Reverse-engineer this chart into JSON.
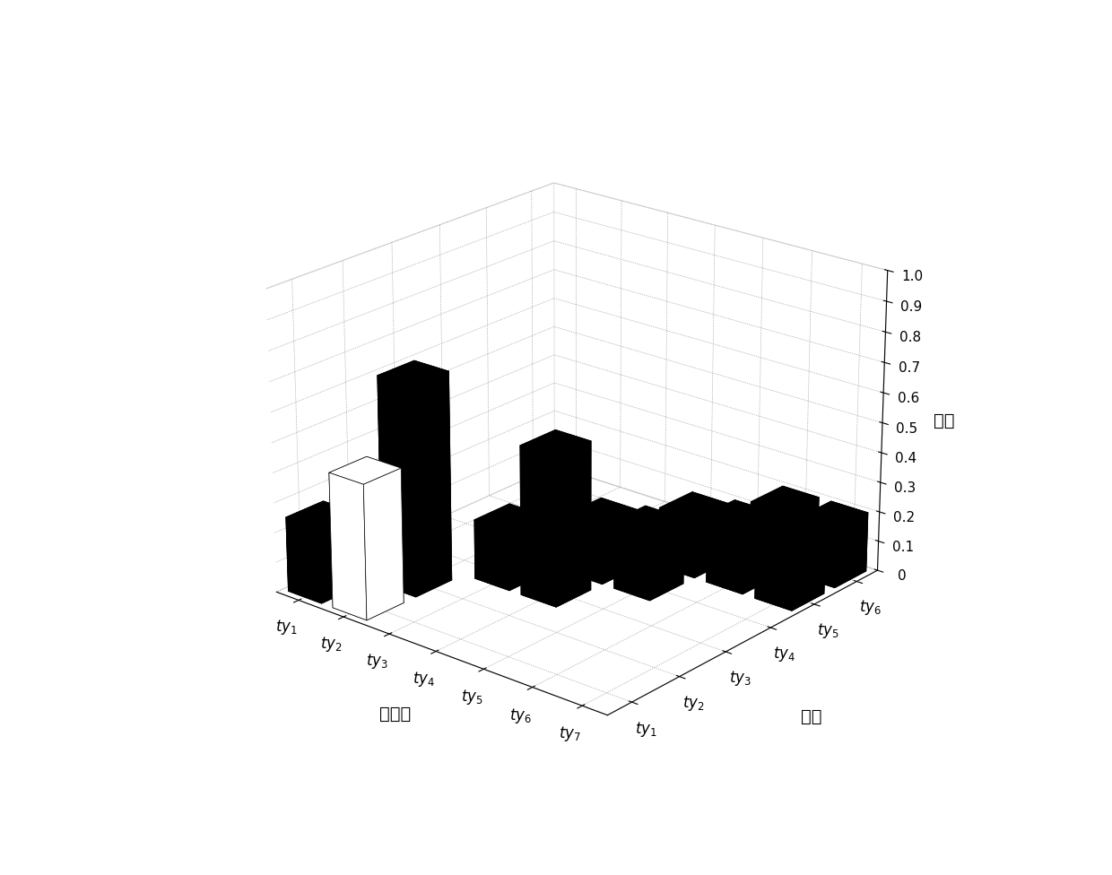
{
  "xlabel": "目的地",
  "ylabel": "初始",
  "zlabel": "概率",
  "x_labels": [
    "$ty_1$",
    "$ty_2$",
    "$ty_3$",
    "$ty_4$",
    "$ty_5$",
    "$ty_6$",
    "$ty_7$"
  ],
  "y_labels": [
    "$ty_1$",
    "$ty_2$",
    "$ty_3$",
    "$ty_4$",
    "$ty_5$",
    "$ty_6$"
  ],
  "z_data": [
    [
      0.25,
      0.45,
      0.0,
      0.0,
      0.0,
      0.0,
      0.0
    ],
    [
      0.1,
      0.7,
      0.0,
      0.0,
      0.0,
      0.0,
      0.0
    ],
    [
      0.0,
      0.0,
      0.2,
      0.5,
      0.0,
      0.0,
      0.0
    ],
    [
      0.0,
      0.0,
      0.2,
      0.2,
      0.2,
      0.0,
      0.0
    ],
    [
      0.0,
      0.0,
      0.0,
      0.1,
      0.2,
      0.2,
      0.2
    ],
    [
      0.0,
      0.0,
      0.0,
      0.0,
      0.1,
      0.2,
      0.2
    ]
  ],
  "bar_colors": [
    [
      "black",
      "white",
      "black",
      "black",
      "black",
      "black",
      "black"
    ],
    [
      "black",
      "black",
      "black",
      "black",
      "black",
      "black",
      "black"
    ],
    [
      "black",
      "black",
      "black",
      "black",
      "black",
      "black",
      "black"
    ],
    [
      "black",
      "black",
      "black",
      "black",
      "black",
      "black",
      "black"
    ],
    [
      "black",
      "black",
      "black",
      "black",
      "black",
      "black",
      "black"
    ],
    [
      "black",
      "black",
      "black",
      "black",
      "black",
      "black",
      "black"
    ]
  ],
  "zlim": [
    0,
    1
  ],
  "zticks": [
    0,
    0.1,
    0.2,
    0.3,
    0.4,
    0.5,
    0.6,
    0.7,
    0.8,
    0.9,
    1.0
  ],
  "background_color": "white",
  "elev": 22,
  "azim": -50
}
